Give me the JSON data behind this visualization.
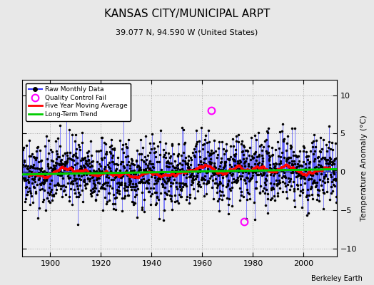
{
  "title": "KANSAS CITY/MUNICIPAL ARPT",
  "subtitle": "39.077 N, 94.590 W (United States)",
  "ylabel": "Temperature Anomaly (°C)",
  "credit": "Berkeley Earth",
  "xlim": [
    1889,
    2013
  ],
  "ylim": [
    -11,
    12
  ],
  "yticks": [
    -10,
    -5,
    0,
    5,
    10
  ],
  "xticks": [
    1900,
    1920,
    1940,
    1960,
    1980,
    2000
  ],
  "raw_color": "#3333ff",
  "ma_color": "#ff0000",
  "trend_color": "#00cc00",
  "qc_color": "#ff00ff",
  "plot_bg_color": "#f0f0f0",
  "fig_bg_color": "#e8e8e8",
  "seed": 42,
  "start_year": 1889,
  "end_year": 2012,
  "qc_fail_points": [
    [
      1963.5,
      8.0
    ],
    [
      1976.5,
      -6.5
    ]
  ],
  "n_months": 1488
}
